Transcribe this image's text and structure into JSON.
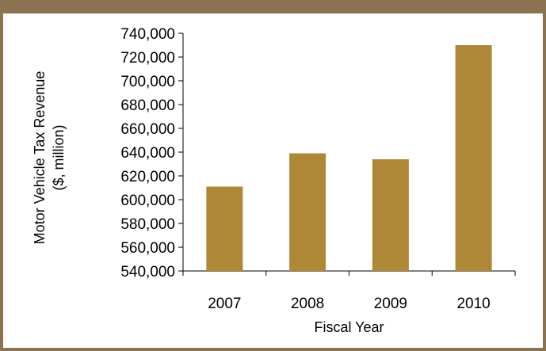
{
  "colors": {
    "frame": "#8b7352",
    "bar": "#ae8836",
    "axis": "#000000"
  },
  "chart_data": {
    "type": "bar",
    "title": "",
    "categories": [
      "2007",
      "2008",
      "2009",
      "2010"
    ],
    "series": [
      {
        "values": [
          611000,
          639000,
          634000,
          730000
        ]
      }
    ],
    "xlabel": "Fiscal Year",
    "ylabel_lines": [
      "Motor Vehicle Tax Revenue",
      "($, million)"
    ],
    "ylim": [
      540000,
      740000
    ],
    "y_ticks": [
      540000,
      560000,
      580000,
      600000,
      620000,
      640000,
      660000,
      680000,
      700000,
      720000,
      740000
    ],
    "y_tick_labels": [
      "540,000",
      "560,000",
      "580,000",
      "600,000",
      "620,000",
      "640,000",
      "660,000",
      "680,000",
      "700,000",
      "720,000",
      "740,000"
    ],
    "grid": false,
    "legend": "none"
  }
}
